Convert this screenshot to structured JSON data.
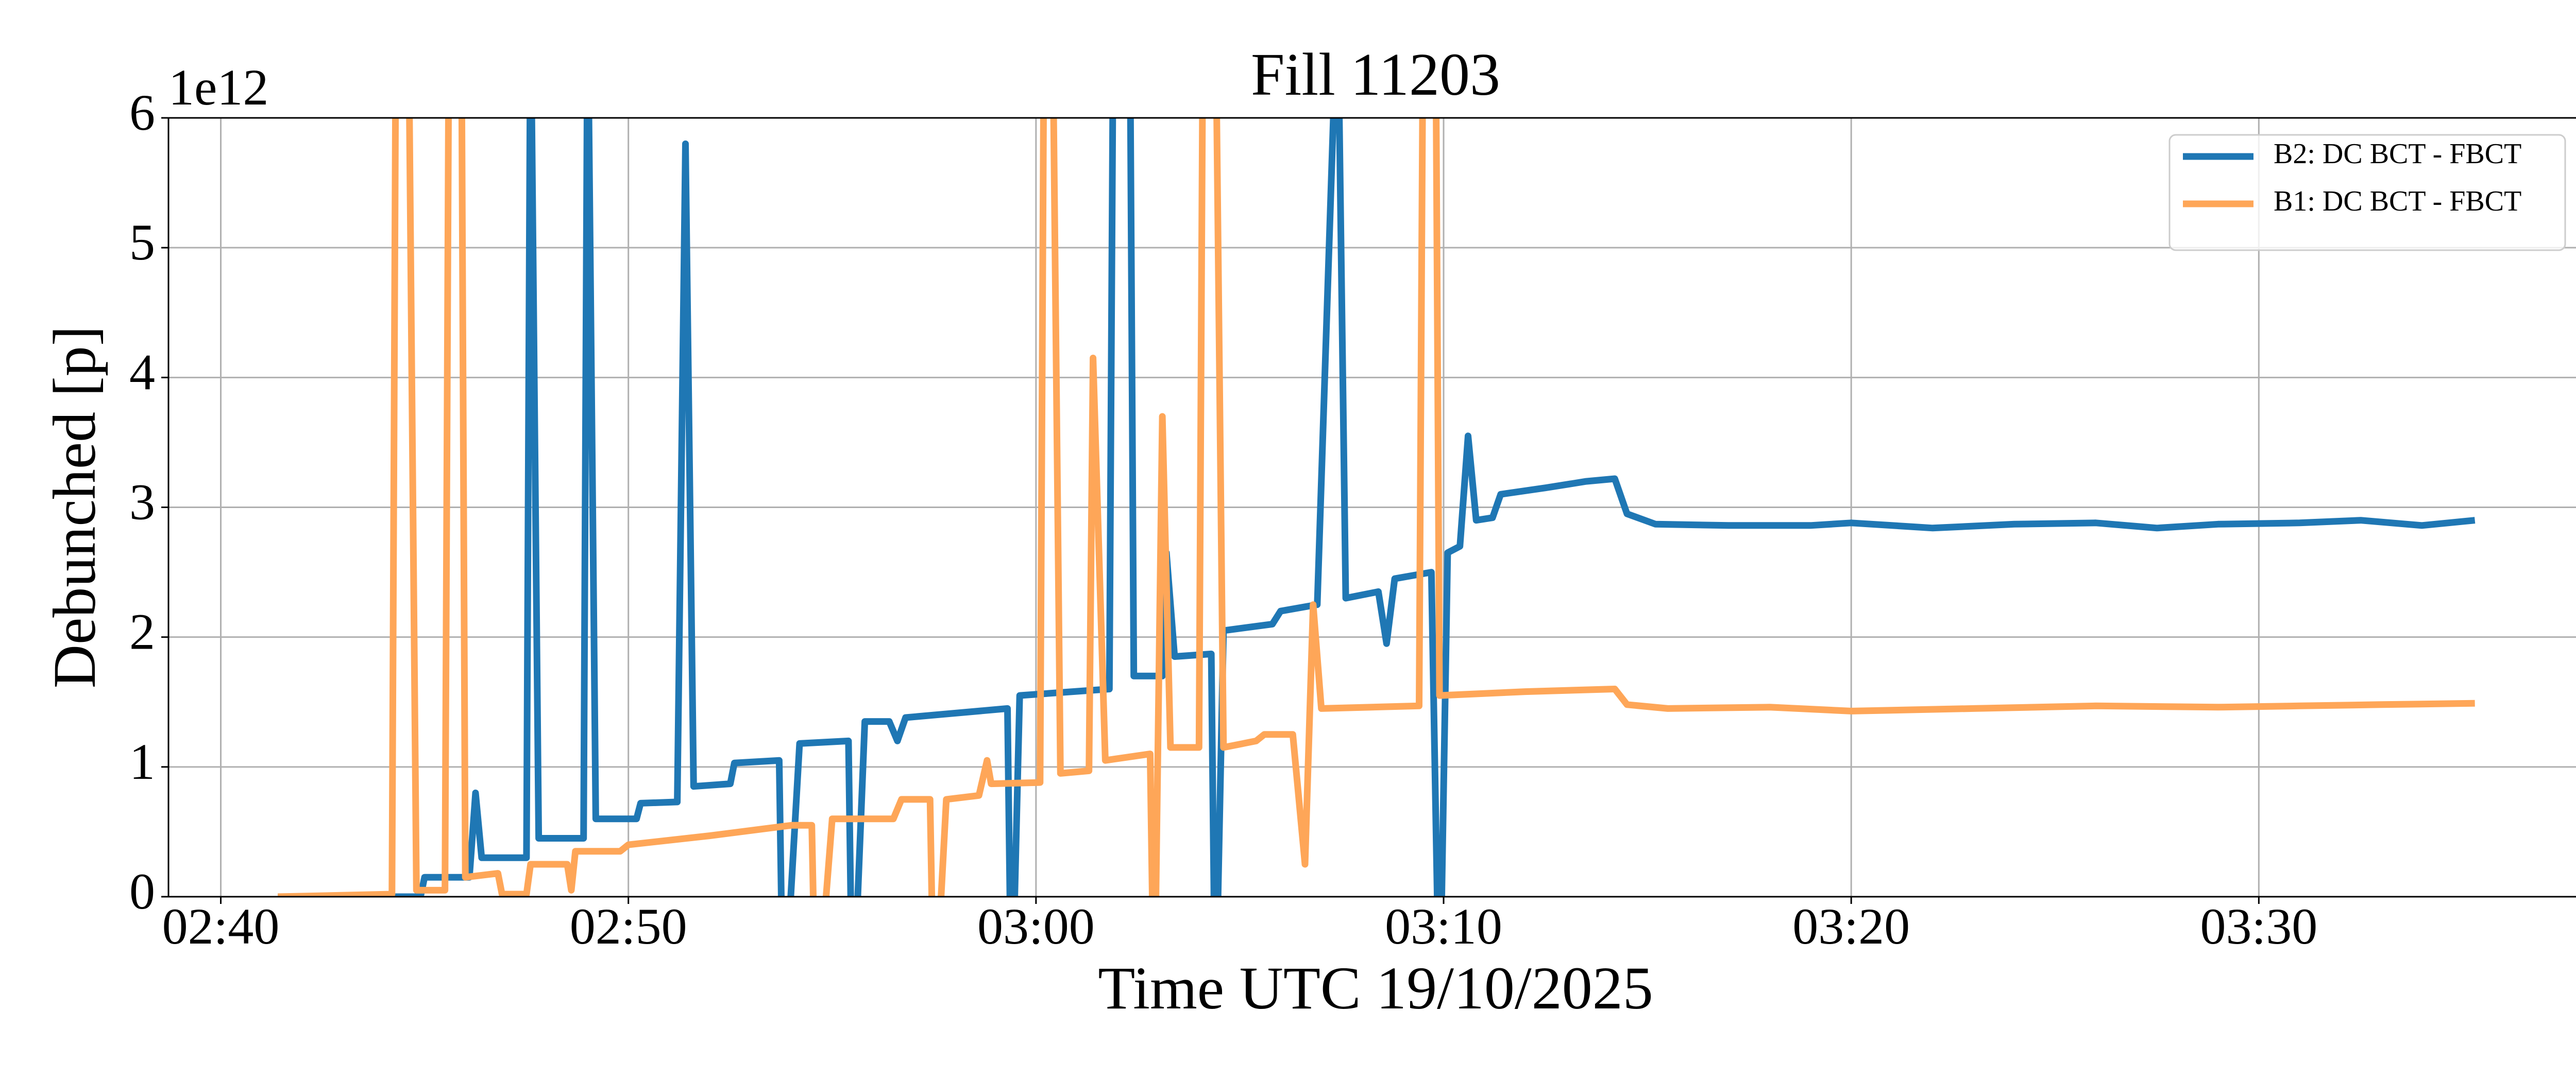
{
  "chart_data": {
    "type": "line",
    "title": "Fill 11203",
    "xlabel": "Time UTC 19/10/2025",
    "ylabel": "Debunched [p]",
    "offset_text": "1e12",
    "xlim": [
      "02:38:43",
      "03:37:56"
    ],
    "xticks": [
      "02:40",
      "02:50",
      "03:00",
      "03:10",
      "03:20",
      "03:30"
    ],
    "ylim": [
      0,
      6
    ],
    "yticks": [
      0,
      1,
      2,
      3,
      4,
      5,
      6
    ],
    "grid": true,
    "legend": "upper right",
    "series": [
      {
        "name": "B2: DC BCT - FBCT",
        "color": "#1f77b4",
        "x": [
          "02:41:24",
          "02:44:54",
          "02:45:00",
          "02:46:06",
          "02:46:15",
          "02:46:24",
          "02:47:30",
          "02:47:36",
          "02:47:48",
          "02:48:54",
          "02:49:00",
          "02:49:12",
          "02:50:12",
          "02:50:18",
          "02:51:12",
          "02:51:24",
          "02:51:36",
          "02:52:30",
          "02:52:36",
          "02:53:42",
          "02:53:48",
          "02:54:12",
          "02:55:24",
          "02:55:30",
          "02:55:48",
          "02:56:24",
          "02:56:36",
          "02:56:48",
          "02:59:18",
          "02:59:24",
          "02:59:36",
          "03:01:48",
          "03:01:54",
          "03:02:18",
          "03:02:24",
          "03:03:06",
          "03:03:12",
          "03:03:24",
          "03:04:18",
          "03:04:24",
          "03:04:36",
          "03:05:48",
          "03:06:00",
          "03:06:54",
          "03:07:24",
          "03:07:36",
          "03:08:24",
          "03:08:36",
          "03:08:48",
          "03:09:42",
          "03:09:54",
          "03:10:06",
          "03:10:24",
          "03:10:36",
          "03:10:48",
          "03:11:12",
          "03:11:24",
          "03:12:30",
          "03:13:30",
          "03:14:12",
          "03:14:30",
          "03:15:12",
          "03:17:00",
          "03:19:00",
          "03:20:00",
          "03:22:00",
          "03:24:00",
          "03:26:00",
          "03:27:30",
          "03:29:00",
          "03:31:00",
          "03:32:30",
          "03:34:00",
          "03:35:18"
        ],
        "values": [
          0,
          0,
          0.15,
          0.15,
          0.8,
          0.3,
          0.3,
          7,
          0.45,
          0.45,
          7,
          0.6,
          0.6,
          0.72,
          0.73,
          5.8,
          0.85,
          0.87,
          1.03,
          1.05,
          -1,
          1.18,
          1.2,
          -1,
          1.35,
          1.35,
          1.2,
          1.38,
          1.45,
          -1,
          1.55,
          1.6,
          7,
          7,
          1.7,
          1.7,
          2.65,
          1.85,
          1.87,
          -1,
          2.05,
          2.1,
          2.2,
          2.25,
          7,
          2.3,
          2.35,
          1.95,
          2.45,
          2.5,
          -1,
          2.65,
          2.7,
          3.55,
          2.9,
          2.92,
          3.1,
          3.15,
          3.2,
          3.22,
          2.95,
          2.87,
          2.86,
          2.86,
          2.88,
          2.84,
          2.87,
          2.88,
          2.84,
          2.87,
          2.88,
          2.9,
          2.86,
          2.9
        ]
      },
      {
        "name": "B1: DC BCT - FBCT",
        "color": "#fea658",
        "x": [
          "02:41:24",
          "02:44:12",
          "02:44:18",
          "02:44:36",
          "02:44:48",
          "02:45:30",
          "02:45:36",
          "02:45:54",
          "02:46:00",
          "02:46:48",
          "02:46:54",
          "02:47:30",
          "02:47:36",
          "02:48:30",
          "02:48:36",
          "02:48:42",
          "02:49:48",
          "02:50:00",
          "02:52:00",
          "02:54:00",
          "02:54:30",
          "02:54:36",
          "02:55:00",
          "02:56:30",
          "02:56:42",
          "02:57:24",
          "02:57:30",
          "02:57:48",
          "02:58:36",
          "02:58:48",
          "02:58:54",
          "03:00:06",
          "03:00:12",
          "03:00:24",
          "03:00:36",
          "03:01:18",
          "03:01:24",
          "03:01:42",
          "03:02:48",
          "03:02:54",
          "03:03:06",
          "03:03:18",
          "03:04:00",
          "03:04:06",
          "03:04:24",
          "03:04:36",
          "03:05:24",
          "03:05:36",
          "03:06:18",
          "03:06:36",
          "03:06:48",
          "03:07:00",
          "03:09:24",
          "03:09:30",
          "03:09:48",
          "03:09:54",
          "03:12:00",
          "03:14:12",
          "03:14:30",
          "03:15:30",
          "03:18:00",
          "03:20:00",
          "03:23:00",
          "03:26:00",
          "03:29:00",
          "03:31:00",
          "03:33:00",
          "03:35:18"
        ],
        "values": [
          0,
          0.02,
          7,
          7,
          0.05,
          0.05,
          7,
          7,
          0.15,
          0.18,
          0.02,
          0.02,
          0.25,
          0.25,
          0.05,
          0.35,
          0.35,
          0.4,
          0.47,
          0.55,
          0.55,
          -1,
          0.6,
          0.6,
          0.75,
          0.75,
          -1,
          0.75,
          0.78,
          1.05,
          0.87,
          0.88,
          7,
          7,
          0.95,
          0.97,
          4.15,
          1.05,
          1.1,
          -1,
          3.7,
          1.15,
          1.15,
          7,
          7,
          1.15,
          1.2,
          1.25,
          1.25,
          0.25,
          2.25,
          1.45,
          1.47,
          7,
          7,
          1.55,
          1.58,
          1.6,
          1.48,
          1.45,
          1.46,
          1.43,
          1.45,
          1.47,
          1.46,
          1.47,
          1.48,
          1.49
        ]
      }
    ]
  }
}
